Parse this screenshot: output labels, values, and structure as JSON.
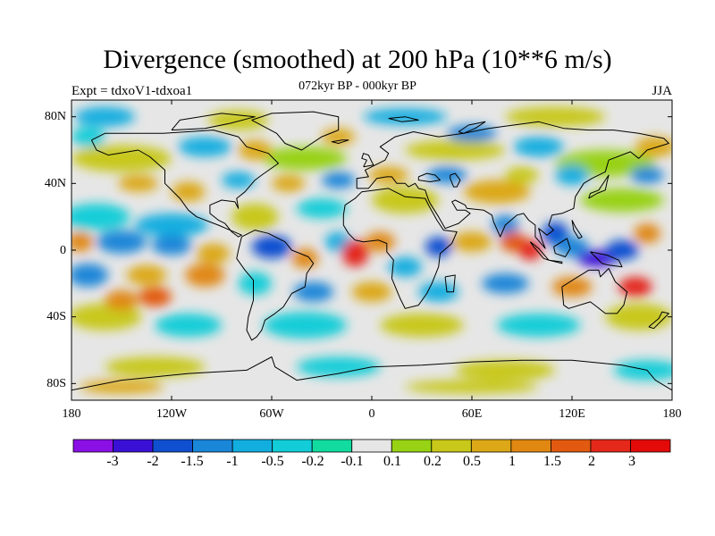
{
  "header": {
    "title": "Divergence (smoothed) at 200 hPa (10**6 m/s)",
    "subtitle": "072kyr BP - 000kyr BP",
    "experiment": "Expt = tdxoV1-tdxoa1",
    "season": "JJA"
  },
  "map": {
    "projection": "cylindrical equidistant",
    "lon_range": [
      -180,
      180
    ],
    "lat_range": [
      -90,
      90
    ],
    "ocean_color": "#e6e6e6",
    "coastline_color": "#000000",
    "y_ticks": [
      {
        "value": 80,
        "label": "80N"
      },
      {
        "value": 40,
        "label": "40N"
      },
      {
        "value": 0,
        "label": "0"
      },
      {
        "value": -40,
        "label": "40S"
      },
      {
        "value": -80,
        "label": "80S"
      }
    ],
    "x_ticks": [
      {
        "value": -180,
        "label": "180"
      },
      {
        "value": -120,
        "label": "120W"
      },
      {
        "value": -60,
        "label": "60W"
      },
      {
        "value": 0,
        "label": "0"
      },
      {
        "value": 60,
        "label": "60E"
      },
      {
        "value": 120,
        "label": "120E"
      },
      {
        "value": 180,
        "label": "180"
      }
    ]
  },
  "chart_data": {
    "type": "filled contour map",
    "title": "Divergence (smoothed) at 200 hPa (10**6 m/s)",
    "variable": "upper-level divergence difference",
    "units": "10**6 m/s",
    "levels": [
      -3,
      -2,
      -1.5,
      -1,
      -0.5,
      -0.2,
      -0.1,
      0.1,
      0.2,
      0.5,
      1,
      1.5,
      2,
      3
    ],
    "colors": [
      "#8a10e6",
      "#3a10d6",
      "#1050d0",
      "#1a86d8",
      "#12aee0",
      "#12cdd8",
      "#12dba0",
      "#e6e6e6",
      "#98d214",
      "#c8c81a",
      "#dca818",
      "#e08812",
      "#e25a10",
      "#e4281a",
      "#e40a0a"
    ],
    "notable_features": [
      {
        "name": "strong convergence",
        "location": "western tropical Pacific (~5S, 135E)",
        "sign": "negative"
      },
      {
        "name": "strong divergence",
        "location": "tropical Atlantic (~5S, 10W)",
        "sign": "positive"
      },
      {
        "name": "strong divergence",
        "location": "Bay of Bengal / Indian Ocean (~0, 95E)",
        "sign": "positive"
      },
      {
        "name": "divergence",
        "location": "southwest Pacific (~25S, 160E)",
        "sign": "positive"
      }
    ]
  }
}
